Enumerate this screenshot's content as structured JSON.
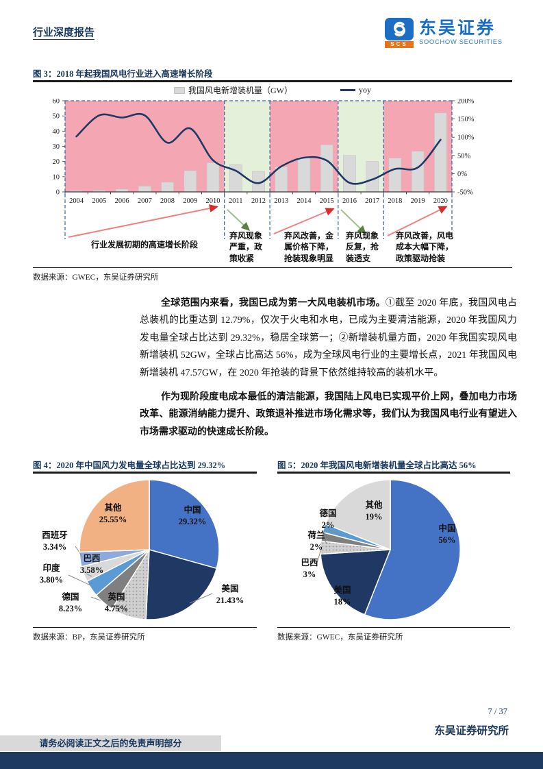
{
  "header": {
    "report_type": "行业深度报告",
    "logo": {
      "abbr": "SCS",
      "brand_cn": "东吴证券",
      "brand_en": "SOOCHOW SECURITIES"
    }
  },
  "colors": {
    "brand_navy": "#17365D",
    "logo_blue": "#1B6EC2",
    "logo_orange": "#E8731A",
    "band_pink": "#F4A7B3",
    "band_green": "#E5F0DB",
    "bar_gray": "#D9D9D9",
    "line_navy": "#1F3864",
    "dash_blue": "#3460A8",
    "arrow_red": "#F08080",
    "arrow_red_head": "#D92B2B",
    "arrow_green": "#A3BD8C",
    "arrow_green_head": "#5C7F43",
    "footer_bar": "#1F3A60"
  },
  "figure3": {
    "title": "图 3：2018 年起我国风电行业进入高速增长阶段",
    "source": "数据来源：GWEC，东吴证券研究所",
    "chart_data": {
      "type": "bar+line",
      "categories": [
        "2004",
        "2005",
        "2006",
        "2007",
        "2008",
        "2009",
        "2010",
        "2011",
        "2012",
        "2013",
        "2014",
        "2015",
        "2016",
        "2017",
        "2018",
        "2019",
        "2020"
      ],
      "series": [
        {
          "name": "我国风电新增装机量（GW）",
          "type": "bar",
          "axis": "left",
          "values": [
            0.8,
            1.0,
            1.8,
            3.8,
            6.4,
            14,
            19.2,
            18,
            13.5,
            16.5,
            23,
            31,
            24,
            20,
            22.3,
            26.8,
            52
          ]
        },
        {
          "name": "yoy",
          "type": "line",
          "axis": "right",
          "values": [
            102,
            160,
            154,
            160,
            85,
            124,
            37,
            8,
            -26,
            20,
            44,
            36,
            -25,
            -16,
            13,
            17,
            93
          ]
        }
      ],
      "left_axis": {
        "min": 0,
        "max": 60,
        "ticks": [
          "0",
          "10",
          "20",
          "30",
          "40",
          "50",
          "60"
        ]
      },
      "right_axis": {
        "min": -50,
        "max": 200,
        "ticks": [
          "-50%",
          "0%",
          "50%",
          "100%",
          "150%",
          "200%"
        ]
      },
      "legend_position": "top",
      "phases": [
        {
          "years": "2004-2010",
          "span": 7,
          "band": "pink",
          "trend": "up",
          "label": "行业发展初期的高速增长阶段"
        },
        {
          "years": "2011-2012",
          "span": 2,
          "band": "green",
          "trend": "down",
          "label": "弃风现象\n严重，政\n策收紧"
        },
        {
          "years": "2013-2015",
          "span": 3,
          "band": "pink",
          "trend": "up",
          "label": "弃风改善，金\n属价格下降，\n抢装现象明显"
        },
        {
          "years": "2016-2017",
          "span": 2,
          "band": "green",
          "trend": "down",
          "label": "弃风现象\n反复，抢\n装透支"
        },
        {
          "years": "2018-2020",
          "span": 3,
          "band": "pink",
          "trend": "up",
          "label": "弃风改善，风电\n成本大幅下降，\n政策驱动抢装"
        }
      ]
    }
  },
  "paragraphs": {
    "p1_lead": "全球范围内来看，我国已成为第一大风电装机市场。",
    "p1_rest": "①截至 2020 年底，我国风电占总装机的比重达到 12.79%，仅次于火电和水电，已成为主要清洁能源，2020 年我国风力发电量全球占比达到 29.32%，稳居全球第一；②新增装机量方面，2020 年我国实现风电新增装机 52GW，全球占比高达 56%，成为全球风电行业的主要增长点，2021 年我国风电新增装机 47.57GW，在 2020 年抢装的背景下依然维持较高的装机水平。",
    "p2": "作为现阶段度电成本最低的清洁能源，我国陆上风电已实现平价上网，叠加电力市场改革、能源消纳能力提升、政策退补推进市场化需求等，我们认为我国风电行业有望进入市场需求驱动的快速成长阶段。"
  },
  "figure4": {
    "title": "图 4：2020 年中国风力发电量全球占比达到 29.32%",
    "source": "数据来源：BP，东吴证券研究所",
    "chart_data": {
      "type": "pie",
      "slices": [
        {
          "name": "中国",
          "pct": "29.32%",
          "value": 29.32,
          "color": "#4472C4"
        },
        {
          "name": "美国",
          "pct": "21.43%",
          "value": 21.43,
          "color": "#1F3864"
        },
        {
          "name": "德国",
          "pct": "8.23%",
          "value": 8.23,
          "color": "#C9C9C9",
          "pattern": true
        },
        {
          "name": "英国",
          "pct": "4.75%",
          "value": 4.75,
          "color": "#7F7F7F"
        },
        {
          "name": "印度",
          "pct": "3.80%",
          "value": 3.8,
          "color": "#5B9BD5"
        },
        {
          "name": "巴西",
          "pct": "3.58%",
          "value": 3.58,
          "color": "#D9D9D9"
        },
        {
          "name": "西班牙",
          "pct": "3.34%",
          "value": 3.34,
          "color": "#8EA9DB"
        },
        {
          "name": "其他",
          "pct": "25.55%",
          "value": 25.55,
          "color": "#F2B183"
        }
      ]
    }
  },
  "figure5": {
    "title": "图 5：2020 年我国风电新增装机量全球占比高达 56%",
    "source": "数据来源：GWEC，东吴证券研究所",
    "chart_data": {
      "type": "pie",
      "slices": [
        {
          "name": "中国",
          "pct": "56%",
          "value": 56,
          "color": "#4472C4"
        },
        {
          "name": "美国",
          "pct": "18%",
          "value": 18,
          "color": "#1F3864"
        },
        {
          "name": "巴西",
          "pct": "3%",
          "value": 3,
          "color": "#C9C9C9",
          "pattern": true
        },
        {
          "name": "荷兰",
          "pct": "2%",
          "value": 2,
          "color": "#7F7F7F"
        },
        {
          "name": "德国",
          "pct": "2%",
          "value": 2,
          "color": "#5B9BD5"
        },
        {
          "name": "其他",
          "pct": "19%",
          "value": 19,
          "color": "#D9D9D9"
        }
      ]
    }
  },
  "footer": {
    "page_number": "7 / 37",
    "institute": "东吴证券研究所",
    "disclaimer": "请务必阅读正文之后的免责声明部分"
  }
}
